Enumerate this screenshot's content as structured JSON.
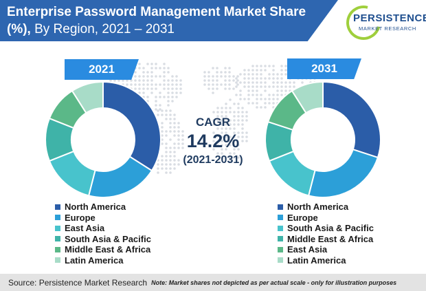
{
  "header": {
    "title_bold": "Enterprise Password Management Market Share (%),",
    "title_regular": " By Region, 2021 – 2031"
  },
  "logo": {
    "name": "PERSISTENCE",
    "tagline": "MARKET RESEARCH"
  },
  "colors": {
    "header": "#2e66b0",
    "tab": "#2a8be0",
    "north_america": "#2b5da8",
    "europe": "#2c9fd8",
    "east_asia": "#48c3cc",
    "south_asia_pacific": "#3fb3a8",
    "middle_east_africa": "#5bb888",
    "latin_america": "#a8dcc8"
  },
  "cagr": {
    "label": "CAGR",
    "value": "14.2%",
    "period": "(2021-2031)"
  },
  "chart_data": [
    {
      "type": "pie",
      "year_label": "2021",
      "slices": [
        {
          "label": "North America",
          "value": 34,
          "color": "#2b5da8"
        },
        {
          "label": "Europe",
          "value": 20,
          "color": "#2c9fd8"
        },
        {
          "label": "East Asia",
          "value": 15,
          "color": "#48c3cc"
        },
        {
          "label": "South Asia & Pacific",
          "value": 12,
          "color": "#3fb3a8"
        },
        {
          "label": "Middle East & Africa",
          "value": 10,
          "color": "#5bb888"
        },
        {
          "label": "Latin America",
          "value": 9,
          "color": "#a8dcc8"
        }
      ],
      "legend": [
        "North America",
        "Europe",
        "East Asia",
        "South Asia & Pacific",
        "Middle East & Africa",
        "Latin America"
      ]
    },
    {
      "type": "pie",
      "year_label": "2031",
      "slices": [
        {
          "label": "North America",
          "value": 30,
          "color": "#2b5da8"
        },
        {
          "label": "Europe",
          "value": 24,
          "color": "#2c9fd8"
        },
        {
          "label": "South Asia & Pacific",
          "value": 15,
          "color": "#48c3cc"
        },
        {
          "label": "Middle East & Africa",
          "value": 11,
          "color": "#3fb3a8"
        },
        {
          "label": "East Asia",
          "value": 11,
          "color": "#5bb888"
        },
        {
          "label": "Latin America",
          "value": 9,
          "color": "#a8dcc8"
        }
      ],
      "legend": [
        "North America",
        "Europe",
        "South Asia & Pacific",
        "Middle East & Africa",
        "East Asia",
        "Latin America"
      ]
    }
  ],
  "footer": {
    "source": "Source: Persistence Market Research",
    "note": "Note: Market shares not depicted as per actual scale - only for illustration purposes"
  }
}
